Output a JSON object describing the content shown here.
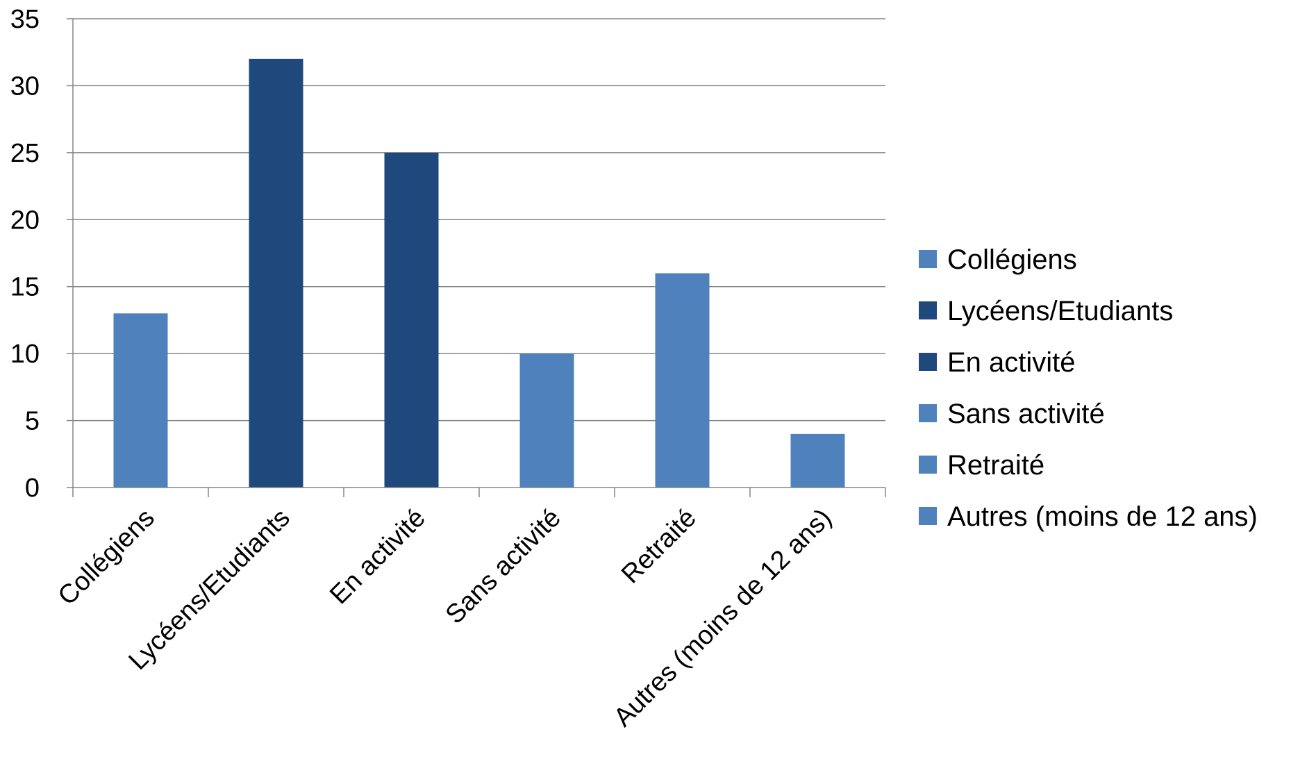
{
  "chart_data": {
    "type": "bar",
    "title": "",
    "xlabel": "",
    "ylabel": "",
    "categories": [
      "Collégiens",
      "Lycéens/Etudiants",
      "En activité",
      "Sans activité",
      "Retraité",
      "Autres (moins de 12 ans)"
    ],
    "values": [
      13,
      32,
      25,
      10,
      16,
      4
    ],
    "colors": [
      "#4f81bd",
      "#1f497d",
      "#1f497d",
      "#4f81bd",
      "#4f81bd",
      "#4f81bd"
    ],
    "ylim": [
      0,
      35
    ],
    "yticks": [
      0,
      5,
      10,
      15,
      20,
      25,
      30,
      35
    ],
    "grid": true,
    "legend": {
      "placement": "right",
      "entries": [
        {
          "label": "Collégiens",
          "color": "#4f81bd"
        },
        {
          "label": "Lycéens/Etudiants",
          "color": "#1f497d"
        },
        {
          "label": "En activité",
          "color": "#1f497d"
        },
        {
          "label": "Sans activité",
          "color": "#4f81bd"
        },
        {
          "label": "Retraité",
          "color": "#4f81bd"
        },
        {
          "label": "Autres (moins de 12 ans)",
          "color": "#4f81bd"
        }
      ]
    }
  }
}
